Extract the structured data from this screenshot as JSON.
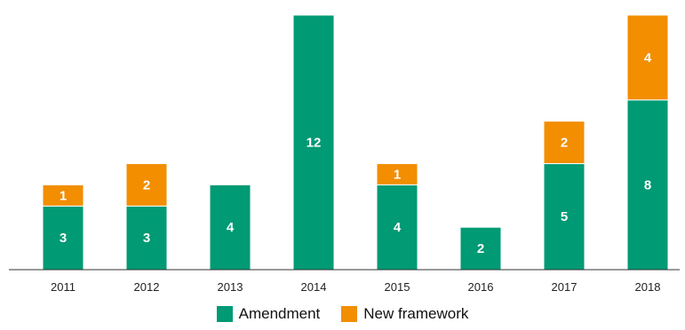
{
  "chart_data": {
    "type": "bar",
    "stacked": true,
    "categories": [
      "2011",
      "2012",
      "2013",
      "2014",
      "2015",
      "2016",
      "2017",
      "2018"
    ],
    "series": [
      {
        "name": "Amendment",
        "color": "#009a74",
        "values": [
          3,
          3,
          4,
          12,
          4,
          2,
          5,
          8
        ]
      },
      {
        "name": "New framework",
        "color": "#f28e00",
        "values": [
          1,
          2,
          0,
          0,
          1,
          0,
          2,
          4
        ]
      }
    ],
    "ylim": [
      0,
      12
    ],
    "data_labels": true,
    "legend_position": "bottom"
  }
}
